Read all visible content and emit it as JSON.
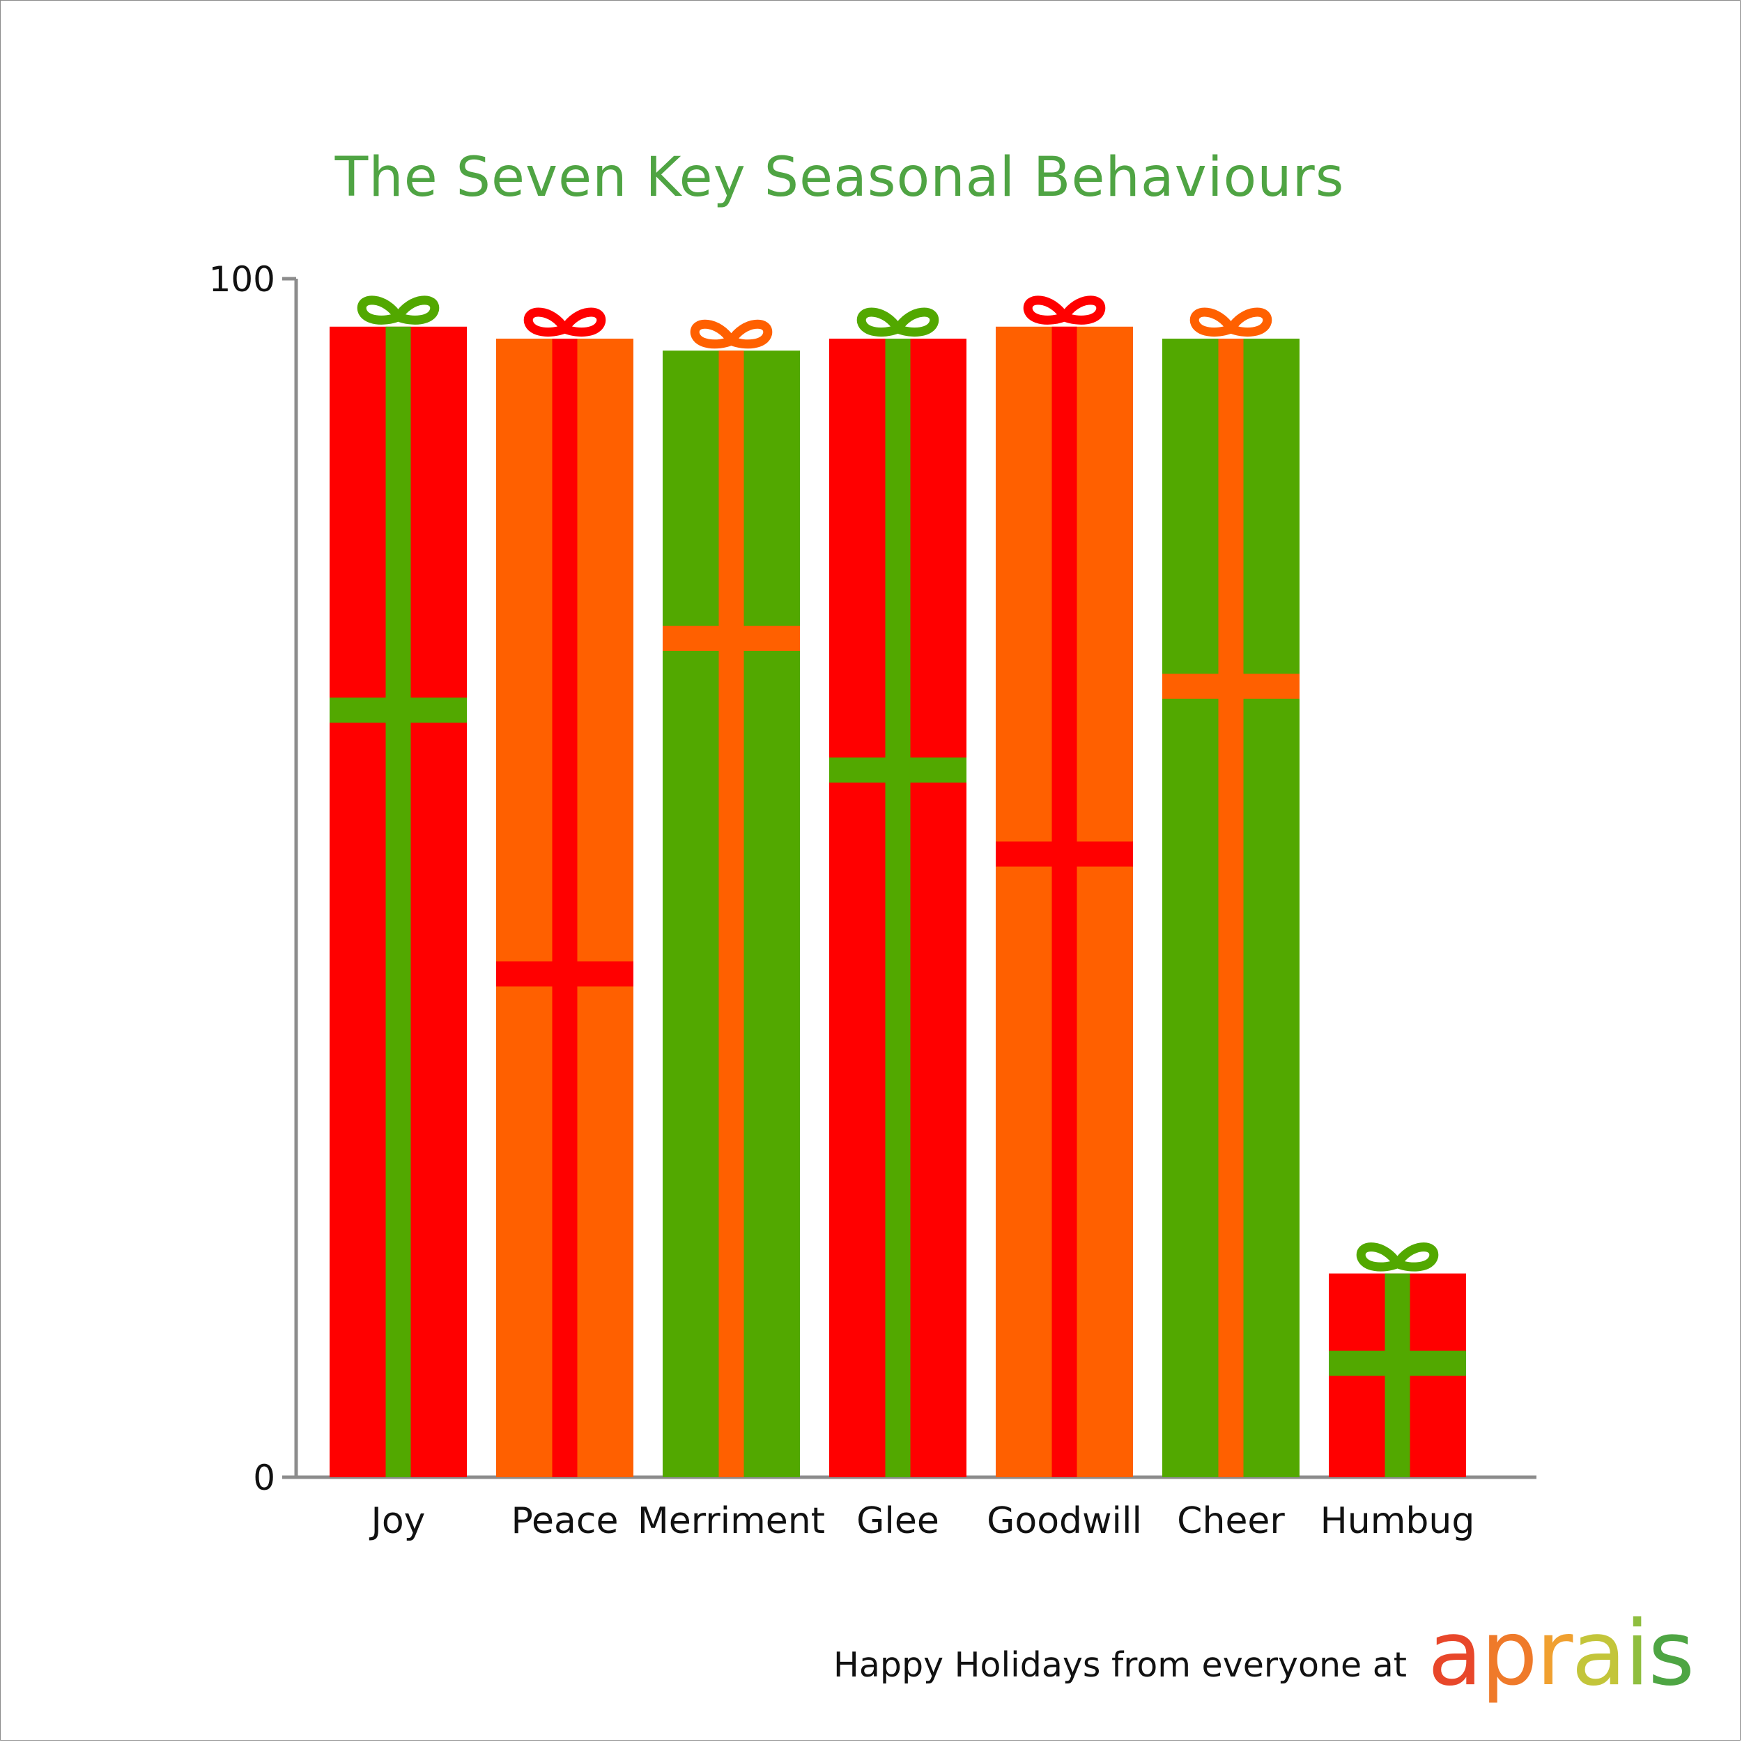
{
  "chart_data": {
    "type": "bar",
    "title": "The Seven Key Seasonal Behaviours",
    "categories": [
      "Joy",
      "Peace",
      "Merriment",
      "Glee",
      "Goodwill",
      "Cheer",
      "Humbug"
    ],
    "values": [
      96,
      95,
      94,
      95,
      96,
      95,
      17
    ],
    "ribbon_positions": [
      64,
      42,
      70,
      59,
      52,
      66,
      9.5
    ],
    "box_colors": [
      "#ff0000",
      "#ff6000",
      "#52a800",
      "#ff0000",
      "#ff6000",
      "#52a800",
      "#ff0000"
    ],
    "ribbon_colors": [
      "#52a800",
      "#ff0000",
      "#ff6000",
      "#52a800",
      "#ff0000",
      "#ff6000",
      "#52a800"
    ],
    "ylim": [
      0,
      100
    ],
    "yticks": [
      "0",
      "100"
    ],
    "xlabel": "",
    "ylabel": "",
    "grid": false
  },
  "footer": {
    "text": "Happy Holidays from everyone at",
    "logo_letters": [
      {
        "char": "a",
        "color": "#e8472a"
      },
      {
        "char": "p",
        "color": "#ef7a2a"
      },
      {
        "char": "r",
        "color": "#f0a030"
      },
      {
        "char": "a",
        "color": "#c3c53a"
      },
      {
        "char": "i",
        "color": "#8fbe3f"
      },
      {
        "char": "s",
        "color": "#4ea543"
      }
    ]
  }
}
